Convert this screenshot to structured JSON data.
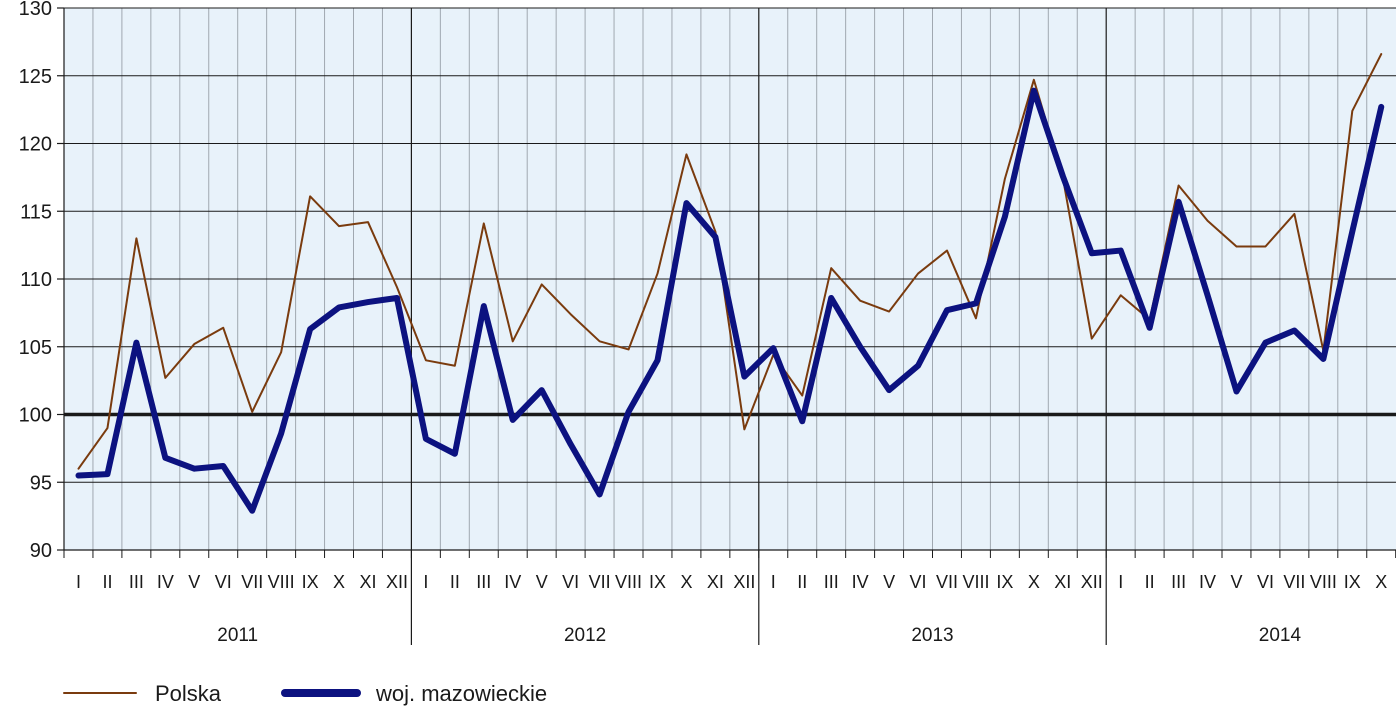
{
  "chart_data": {
    "type": "line",
    "title": "",
    "xlabel": "",
    "ylabel": "",
    "ylim": [
      90,
      130
    ],
    "yticks": [
      90,
      95,
      100,
      105,
      110,
      115,
      120,
      125,
      130
    ],
    "reference_line": 100,
    "grid": true,
    "legend_position": "bottom-left",
    "years": [
      "2011",
      "2012",
      "2013",
      "2014"
    ],
    "month_labels": [
      "I",
      "II",
      "III",
      "IV",
      "V",
      "VI",
      "VII",
      "VIII",
      "IX",
      "X",
      "XI",
      "XII"
    ],
    "categories": [
      "I 2011",
      "II 2011",
      "III 2011",
      "IV 2011",
      "V 2011",
      "VI 2011",
      "VII 2011",
      "VIII 2011",
      "IX 2011",
      "X 2011",
      "XI 2011",
      "XII 2011",
      "I 2012",
      "II 2012",
      "III 2012",
      "IV 2012",
      "V 2012",
      "VI 2012",
      "VII 2012",
      "VIII 2012",
      "IX 2012",
      "X 2012",
      "XI 2012",
      "XII 2012",
      "I 2013",
      "II 2013",
      "III 2013",
      "IV 2013",
      "V 2013",
      "VI 2013",
      "VII 2013",
      "VIII 2013",
      "IX 2013",
      "X 2013",
      "XI 2013",
      "XII 2013",
      "I 2014",
      "II 2014",
      "III 2014",
      "IV 2014",
      "V 2014",
      "VI 2014",
      "VII 2014",
      "VIII 2014",
      "IX 2014",
      "X 2014"
    ],
    "series": [
      {
        "name": "Polska",
        "color": "#7a3b0e",
        "values": [
          96.0,
          99.0,
          113.0,
          102.7,
          105.2,
          106.4,
          100.2,
          104.6,
          116.1,
          113.9,
          114.2,
          109.4,
          104.0,
          103.6,
          114.1,
          105.4,
          109.6,
          107.4,
          105.4,
          104.8,
          110.4,
          119.2,
          113.5,
          98.9,
          104.4,
          101.4,
          110.8,
          108.4,
          107.6,
          110.4,
          112.1,
          107.1,
          117.4,
          124.7,
          117.5,
          105.6,
          108.8,
          107.0,
          116.9,
          114.3,
          112.4,
          112.4,
          114.8,
          104.7,
          122.4,
          126.6
        ]
      },
      {
        "name": "woj. mazowieckie",
        "color": "#0c1280",
        "values": [
          95.5,
          95.6,
          105.3,
          96.8,
          96.0,
          96.2,
          92.9,
          98.6,
          106.3,
          107.9,
          108.3,
          108.6,
          98.2,
          97.1,
          108.0,
          99.6,
          101.8,
          97.8,
          94.1,
          100.2,
          104.0,
          115.6,
          113.1,
          102.8,
          104.9,
          99.5,
          108.6,
          105.0,
          101.8,
          103.6,
          107.7,
          108.2,
          114.6,
          123.9,
          117.6,
          111.9,
          112.1,
          106.4,
          115.7,
          108.8,
          101.7,
          105.3,
          106.2,
          104.1,
          113.5,
          122.7
        ]
      }
    ]
  }
}
